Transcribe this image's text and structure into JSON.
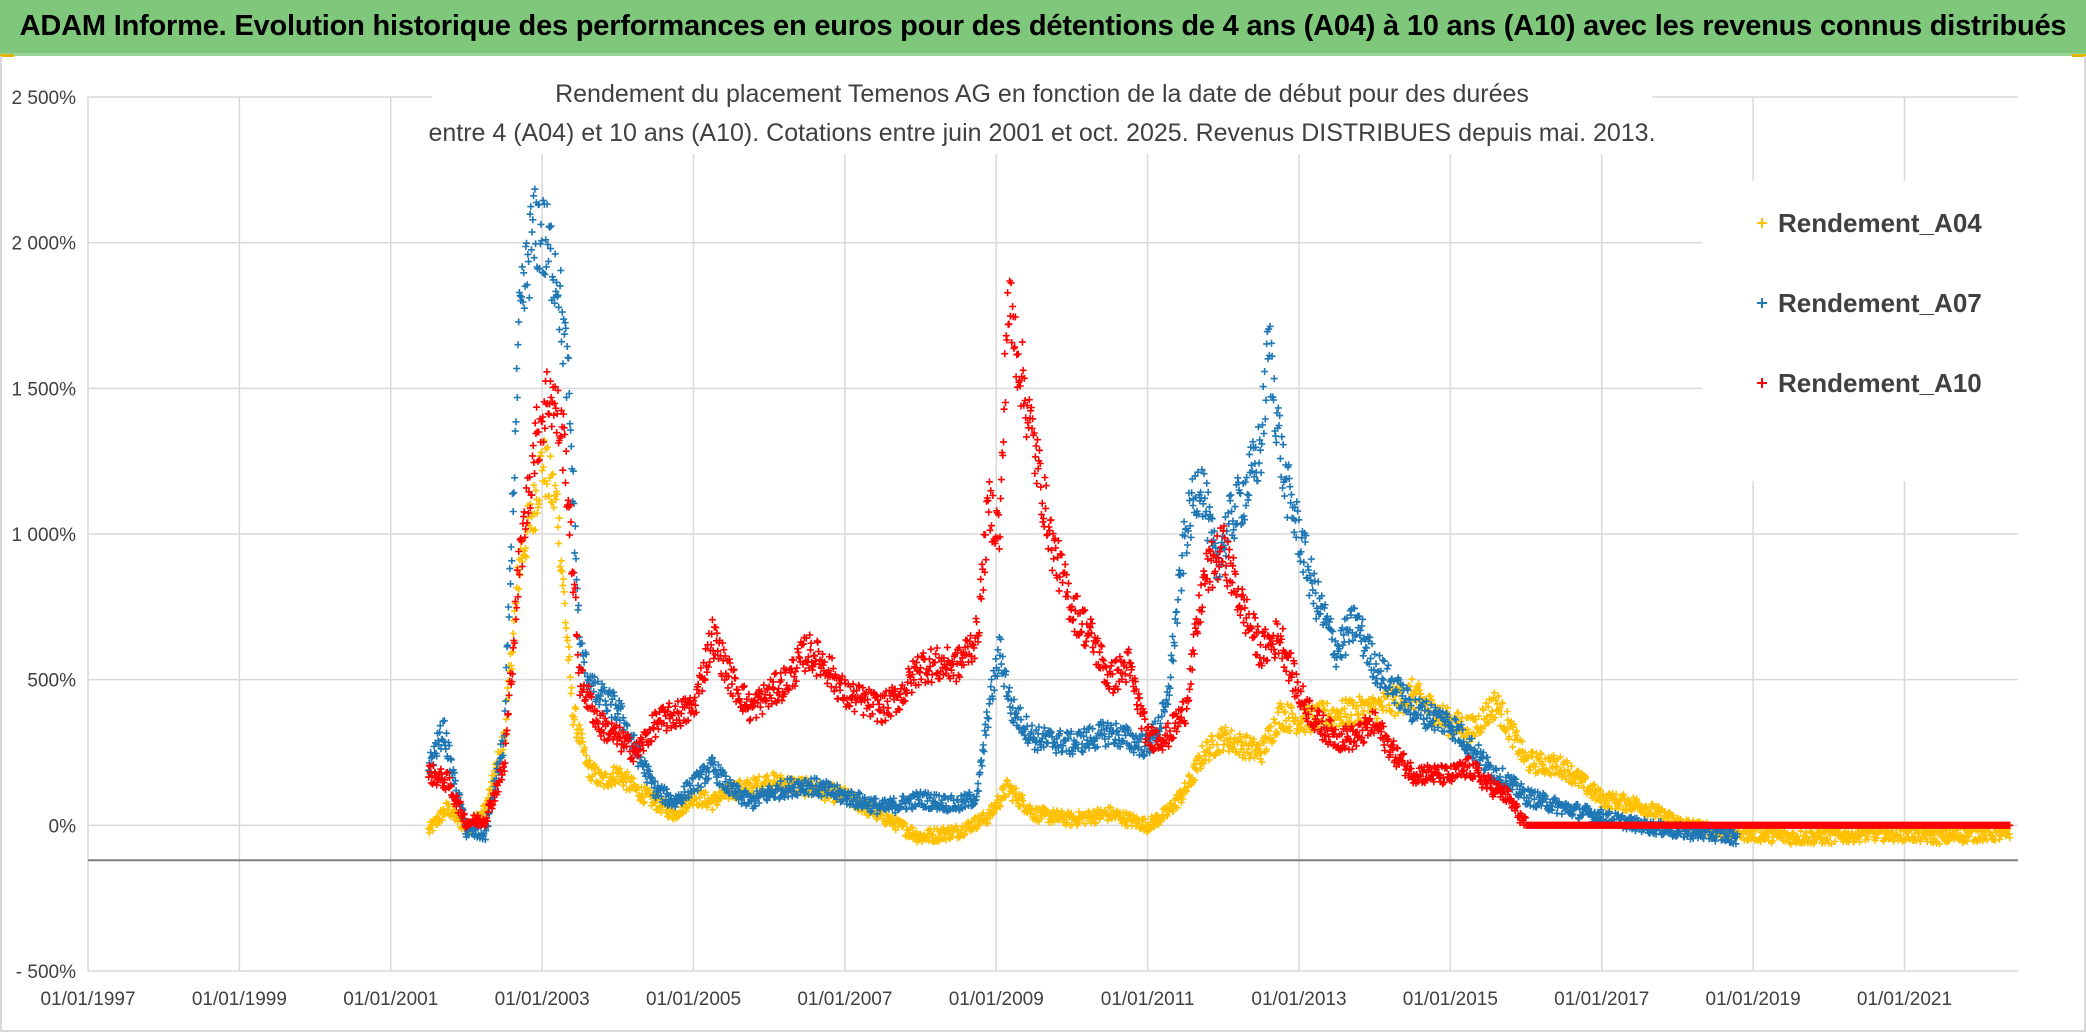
{
  "banner": {
    "title": "ADAM Informe. Evolution historique des performances en euros pour des détentions de 4 ans (A04) à 10 ans (A10) avec les revenus connus distribués"
  },
  "colors": {
    "banner_bg": "#7ec77b",
    "a04": "#ffc000",
    "a07": "#1f77b4",
    "a10": "#ff0000",
    "grid": "#d9d9d9",
    "axis": "#7f7f7f"
  },
  "chart_data": {
    "type": "scatter",
    "marker": "+",
    "title": [
      "Rendement du placement Temenos AG en fonction de la date de début pour des durées",
      "entre 4 (A04) et 10 ans (A10). Cotations entre juin 2001 et oct. 2025. Revenus DISTRIBUES depuis mai. 2013."
    ],
    "xlabel": "",
    "ylabel": "",
    "x_range": [
      1997.0,
      2022.5
    ],
    "y_range": [
      -500,
      2500
    ],
    "x_ticks": [
      {
        "value": 1997,
        "label": "01/01/1997"
      },
      {
        "value": 1999,
        "label": "01/01/1999"
      },
      {
        "value": 2001,
        "label": "01/01/2001"
      },
      {
        "value": 2003,
        "label": "01/01/2003"
      },
      {
        "value": 2005,
        "label": "01/01/2005"
      },
      {
        "value": 2007,
        "label": "01/01/2007"
      },
      {
        "value": 2009,
        "label": "01/01/2009"
      },
      {
        "value": 2011,
        "label": "01/01/2011"
      },
      {
        "value": 2013,
        "label": "01/01/2013"
      },
      {
        "value": 2015,
        "label": "01/01/2015"
      },
      {
        "value": 2017,
        "label": "01/01/2017"
      },
      {
        "value": 2019,
        "label": "01/01/2019"
      },
      {
        "value": 2021,
        "label": "01/01/2021"
      }
    ],
    "y_ticks": [
      {
        "value": 2500,
        "label": "2 500%"
      },
      {
        "value": 2000,
        "label": "2 000%"
      },
      {
        "value": 1500,
        "label": "1 500%"
      },
      {
        "value": 1000,
        "label": "1 000%"
      },
      {
        "value": 500,
        "label": "500%"
      },
      {
        "value": 0,
        "label": "0%"
      },
      {
        "value": -500,
        "label": "- 500%"
      }
    ],
    "legend_position": "right",
    "series": [
      {
        "name": "Rendement_A04",
        "color": "#ffc000",
        "x": [
          2001.5,
          2001.75,
          2002.0,
          2002.25,
          2002.5,
          2002.7,
          2002.9,
          2003.0,
          2003.2,
          2003.4,
          2003.6,
          2003.8,
          2004.0,
          2004.25,
          2004.5,
          2004.75,
          2005.0,
          2005.25,
          2005.5,
          2005.75,
          2006.0,
          2006.5,
          2007.0,
          2007.5,
          2008.0,
          2008.5,
          2008.9,
          2009.15,
          2009.5,
          2010.0,
          2010.5,
          2011.0,
          2011.25,
          2011.5,
          2011.75,
          2012.0,
          2012.5,
          2012.75,
          2013.0,
          2013.5,
          2014.0,
          2014.5,
          2015.0,
          2015.3,
          2015.6,
          2015.85,
          2016.0,
          2016.5,
          2017.0,
          2017.5,
          2018.0,
          2018.5,
          2019.0,
          2019.5,
          2020.0,
          2020.5,
          2021.0,
          2021.5,
          2022.0,
          2022.4
        ],
        "y": [
          -20,
          60,
          -10,
          50,
          300,
          900,
          1100,
          1250,
          1100,
          400,
          200,
          150,
          180,
          120,
          80,
          40,
          100,
          80,
          120,
          130,
          150,
          130,
          100,
          30,
          -40,
          -20,
          30,
          130,
          40,
          20,
          40,
          0,
          40,
          120,
          250,
          300,
          250,
          380,
          360,
          380,
          400,
          450,
          350,
          330,
          420,
          300,
          220,
          200,
          90,
          70,
          10,
          -20,
          -30,
          -40,
          -40,
          -30,
          -30,
          -40,
          -30,
          -30
        ]
      },
      {
        "name": "Rendement_A07",
        "color": "#1f77b4",
        "x": [
          2001.5,
          2001.7,
          2001.8,
          2002.0,
          2002.25,
          2002.5,
          2002.7,
          2002.85,
          2002.95,
          2003.2,
          2003.35,
          2003.5,
          2003.7,
          2004.0,
          2004.25,
          2004.5,
          2004.75,
          2005.0,
          2005.25,
          2005.5,
          2005.75,
          2006.0,
          2006.25,
          2006.5,
          2007.0,
          2007.5,
          2008.0,
          2008.5,
          2008.75,
          2008.9,
          2009.05,
          2009.2,
          2009.5,
          2010.0,
          2010.5,
          2011.0,
          2011.25,
          2011.5,
          2011.7,
          2011.9,
          2012.1,
          2012.3,
          2012.5,
          2012.6,
          2012.8,
          2013.0,
          2013.2,
          2013.5,
          2013.75,
          2014.0,
          2014.5,
          2015.0,
          2015.5,
          2016.0,
          2016.5,
          2017.0,
          2017.5,
          2018.0,
          2018.5,
          2018.8
        ],
        "y": [
          200,
          330,
          200,
          -20,
          -30,
          300,
          1700,
          2000,
          2050,
          1900,
          1500,
          600,
          450,
          400,
          250,
          120,
          80,
          140,
          200,
          120,
          80,
          110,
          130,
          140,
          100,
          60,
          90,
          70,
          100,
          400,
          600,
          400,
          300,
          280,
          320,
          270,
          400,
          1000,
          1200,
          900,
          1050,
          1150,
          1300,
          1650,
          1200,
          1000,
          800,
          600,
          700,
          550,
          400,
          350,
          200,
          100,
          60,
          30,
          0,
          -20,
          -30,
          -40
        ]
      },
      {
        "name": "Rendement_A10",
        "color": "#ff0000",
        "x": [
          2001.5,
          2001.75,
          2002.0,
          2002.25,
          2002.5,
          2002.7,
          2002.9,
          2003.1,
          2003.3,
          2003.5,
          2003.75,
          2004.0,
          2004.25,
          2004.5,
          2004.75,
          2005.0,
          2005.25,
          2005.5,
          2005.75,
          2006.0,
          2006.25,
          2006.5,
          2006.75,
          2007.0,
          2007.5,
          2007.75,
          2008.0,
          2008.5,
          2008.75,
          2008.9,
          2009.05,
          2009.15,
          2009.3,
          2009.5,
          2009.75,
          2010.0,
          2010.25,
          2010.5,
          2010.75,
          2011.0,
          2011.25,
          2011.5,
          2011.75,
          2012.0,
          2012.25,
          2012.5,
          2012.75,
          2013.0,
          2013.25,
          2013.5,
          2013.75,
          2014.0,
          2014.25,
          2014.5,
          2015.0,
          2015.25,
          2015.5,
          2015.75,
          2016.0,
          2016.5,
          2017.0,
          2017.5,
          2018.0,
          2018.5,
          2019.0,
          2019.5,
          2020.0,
          2020.5,
          2021.0,
          2021.5,
          2022.0,
          2022.4
        ],
        "y": [
          180,
          150,
          10,
          20,
          200,
          900,
          1300,
          1500,
          1300,
          500,
          350,
          300,
          250,
          350,
          380,
          400,
          650,
          500,
          400,
          450,
          500,
          600,
          550,
          450,
          400,
          450,
          550,
          550,
          650,
          1100,
          1000,
          1800,
          1600,
          1300,
          950,
          750,
          650,
          500,
          550,
          300,
          300,
          400,
          850,
          950,
          750,
          600,
          650,
          450,
          350,
          300,
          300,
          350,
          250,
          180,
          170,
          200,
          140,
          100,
          0,
          0,
          0,
          0,
          0,
          0,
          0,
          0,
          0,
          0,
          0,
          0,
          0,
          0
        ]
      }
    ]
  }
}
